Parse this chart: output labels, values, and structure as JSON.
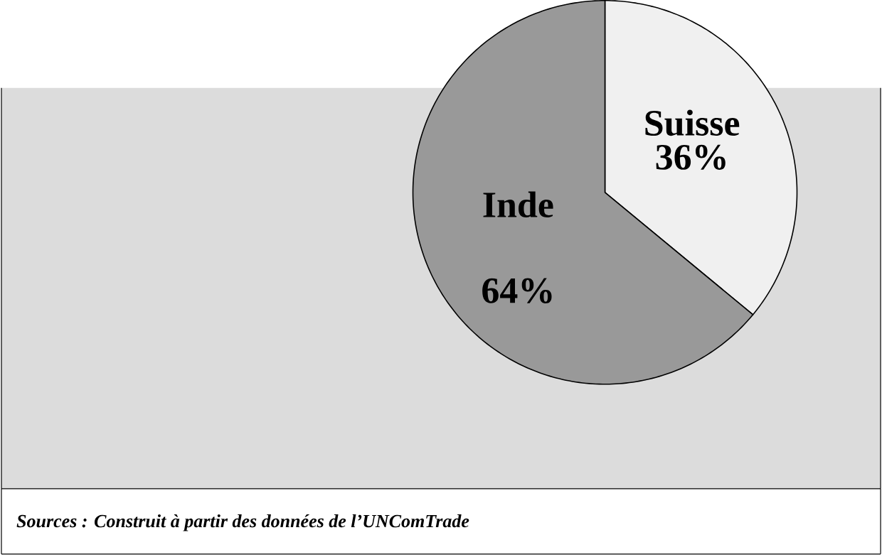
{
  "chart_data": {
    "type": "pie",
    "categories": [
      "Suisse",
      "Inde"
    ],
    "values": [
      36,
      64
    ],
    "value_labels": [
      "36%",
      "64%"
    ],
    "colors": [
      "#f0f0f0",
      "#999999"
    ],
    "annotations": [
      "Sources : Construit à partir des données de l’UNComTrade"
    ]
  }
}
